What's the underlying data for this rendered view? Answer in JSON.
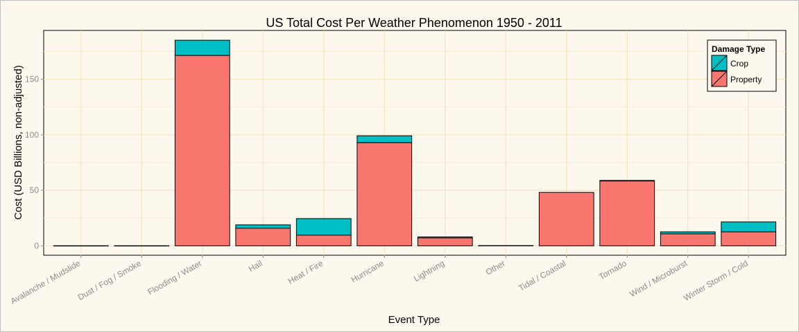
{
  "chart_data": {
    "type": "bar",
    "stacked": true,
    "title": "US Total Cost Per Weather Phenomenon 1950 - 2011",
    "xlabel": "Event Type",
    "ylabel": "Cost (USD Billions, non-adjusted)",
    "categories": [
      "Avalanche / Mudslide",
      "Dust / Fog / Smoke",
      "Flooding / Water",
      "Hail",
      "Heat / Fire",
      "Hurricane",
      "Lightning",
      "Other",
      "Tidal / Coastal",
      "Tornado",
      "Wind / Microburst",
      "Winter Storm / Cold"
    ],
    "series": [
      {
        "name": "Property",
        "color": "#f8766d",
        "values": [
          0.1,
          0.1,
          171.5,
          15.8,
          9.6,
          92.9,
          7.1,
          0.2,
          48.1,
          58.4,
          10.8,
          12.6
        ]
      },
      {
        "name": "Crop",
        "color": "#00bfc4",
        "values": [
          0.0,
          0.0,
          13.7,
          3.1,
          14.9,
          6.2,
          0.9,
          0.0,
          0.0,
          0.5,
          1.8,
          8.9
        ]
      }
    ],
    "ylim": [
      -8.5,
      194
    ],
    "yticks": [
      0,
      50,
      100,
      150
    ],
    "grid": true,
    "legend": {
      "title": "Damage Type",
      "position": "top-right",
      "entries": [
        "Crop",
        "Property"
      ]
    }
  }
}
